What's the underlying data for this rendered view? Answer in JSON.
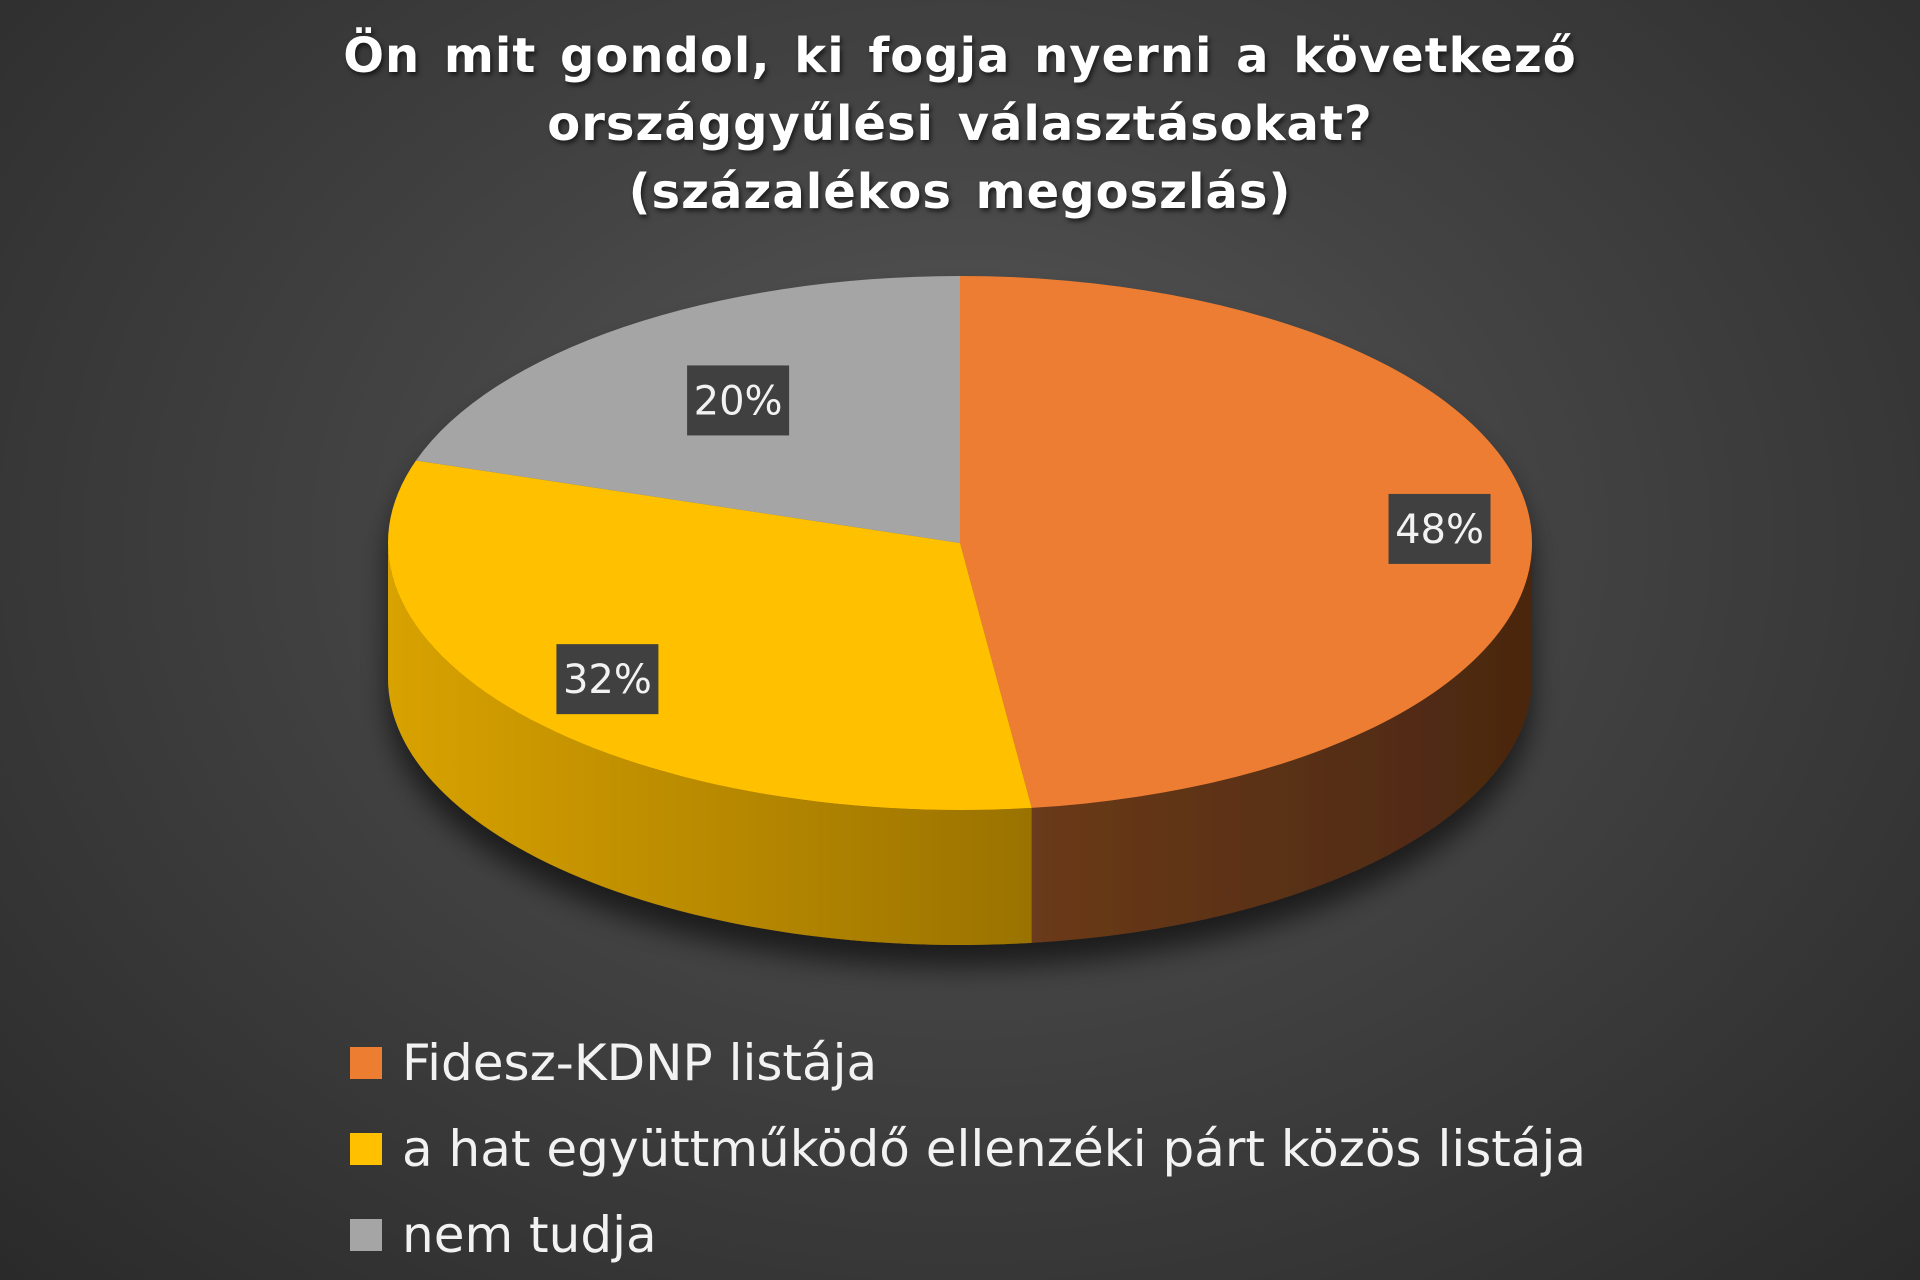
{
  "chart_data": {
    "type": "pie",
    "title": [
      "Ön mit gondol, ki fogja nyerni a következő",
      "országgyűlési választásokat?",
      "(százalékos megoszlás)"
    ],
    "categories": [
      "Fidesz-KDNP listája",
      "a hat együttműködő ellenzéki párt közös listája",
      "nem tudja"
    ],
    "values": [
      48,
      32,
      20
    ],
    "value_labels": [
      "48%",
      "32%",
      "20%"
    ],
    "colors": [
      "#ED7D31",
      "#FFC000",
      "#A5A5A5"
    ],
    "style": "3d",
    "legend_position": "bottom"
  }
}
